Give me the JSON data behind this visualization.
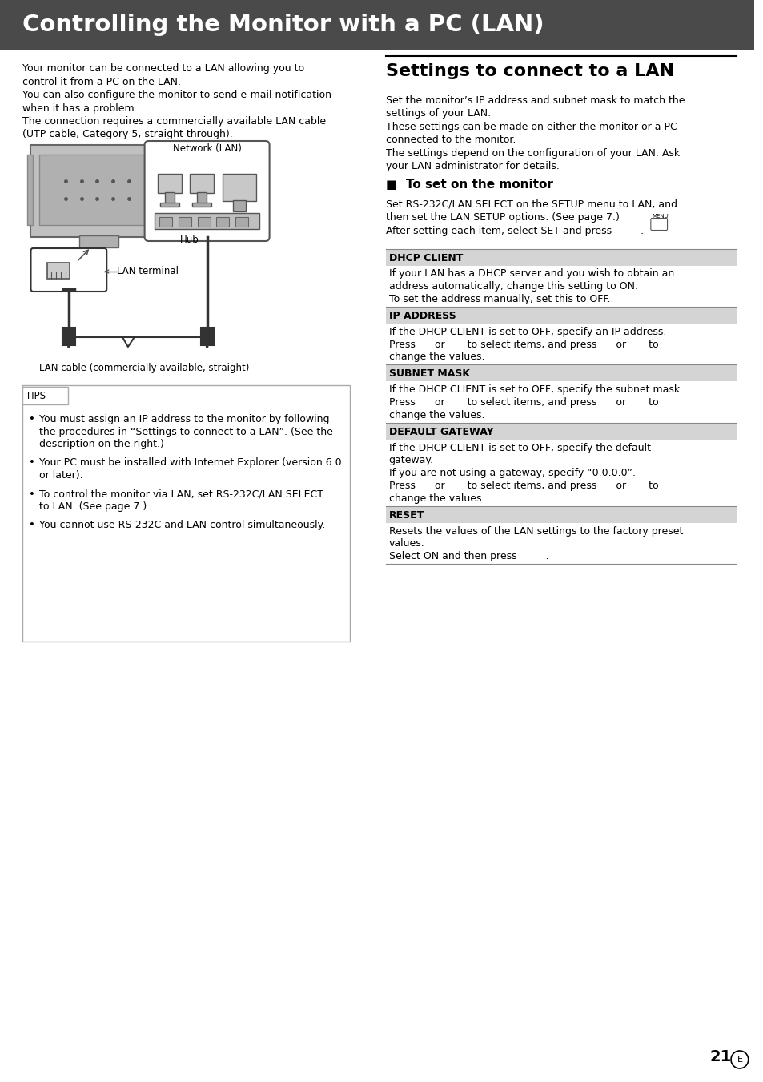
{
  "header_bg": "#4a4a4a",
  "header_text": "Controlling the Monitor with a PC (LAN)",
  "header_text_color": "#ffffff",
  "body_bg": "#ffffff",
  "page_number": "21",
  "intro_text_lines": [
    "Your monitor can be connected to a LAN allowing you to",
    "control it from a PC on the LAN.",
    "You can also configure the monitor to send e-mail notification",
    "when it has a problem.",
    "The connection requires a commercially available LAN cable",
    "(UTP cable, Category 5, straight through)."
  ],
  "settings_title": "Settings to connect to a LAN",
  "settings_intro_lines": [
    "Set the monitor’s IP address and subnet mask to match the",
    "settings of your LAN.",
    "These settings can be made on either the monitor or a PC",
    "connected to the monitor.",
    "The settings depend on the configuration of your LAN. Ask",
    "your LAN administrator for details."
  ],
  "to_set_title": "■  To set on the monitor",
  "to_set_lines": [
    "Set RS-232C/LAN SELECT on the SETUP menu to LAN, and",
    "then set the LAN SETUP options. (See page 7.)",
    "After setting each item, select SET and press         ."
  ],
  "sections": [
    {
      "header": "DHCP CLIENT",
      "text_lines": [
        "If your LAN has a DHCP server and you wish to obtain an",
        "address automatically, change this setting to ON.",
        "To set the address manually, set this to OFF."
      ]
    },
    {
      "header": "IP ADDRESS",
      "text_lines": [
        "If the DHCP CLIENT is set to OFF, specify an IP address.",
        "Press      or       to select items, and press      or       to",
        "change the values."
      ]
    },
    {
      "header": "SUBNET MASK",
      "text_lines": [
        "If the DHCP CLIENT is set to OFF, specify the subnet mask.",
        "Press      or       to select items, and press      or       to",
        "change the values."
      ]
    },
    {
      "header": "DEFAULT GATEWAY",
      "text_lines": [
        "If the DHCP CLIENT is set to OFF, specify the default",
        "gateway.",
        "If you are not using a gateway, specify “0.0.0.0”.",
        "Press      or       to select items, and press      or       to",
        "change the values."
      ]
    },
    {
      "header": "RESET",
      "text_lines": [
        "Resets the values of the LAN settings to the factory preset",
        "values.",
        "Select ON and then press         ."
      ]
    }
  ],
  "tips_items": [
    [
      "You must assign an IP address to the monitor by following",
      "the procedures in “Settings to connect to a LAN”. (See the",
      "description on the right.)"
    ],
    [
      "Your PC must be installed with Internet Explorer (version 6.0",
      "or later)."
    ],
    [
      "To control the monitor via LAN, set RS-232C/LAN SELECT",
      "to LAN. (See page 7.)"
    ],
    [
      "You cannot use RS-232C and LAN control simultaneously."
    ]
  ]
}
